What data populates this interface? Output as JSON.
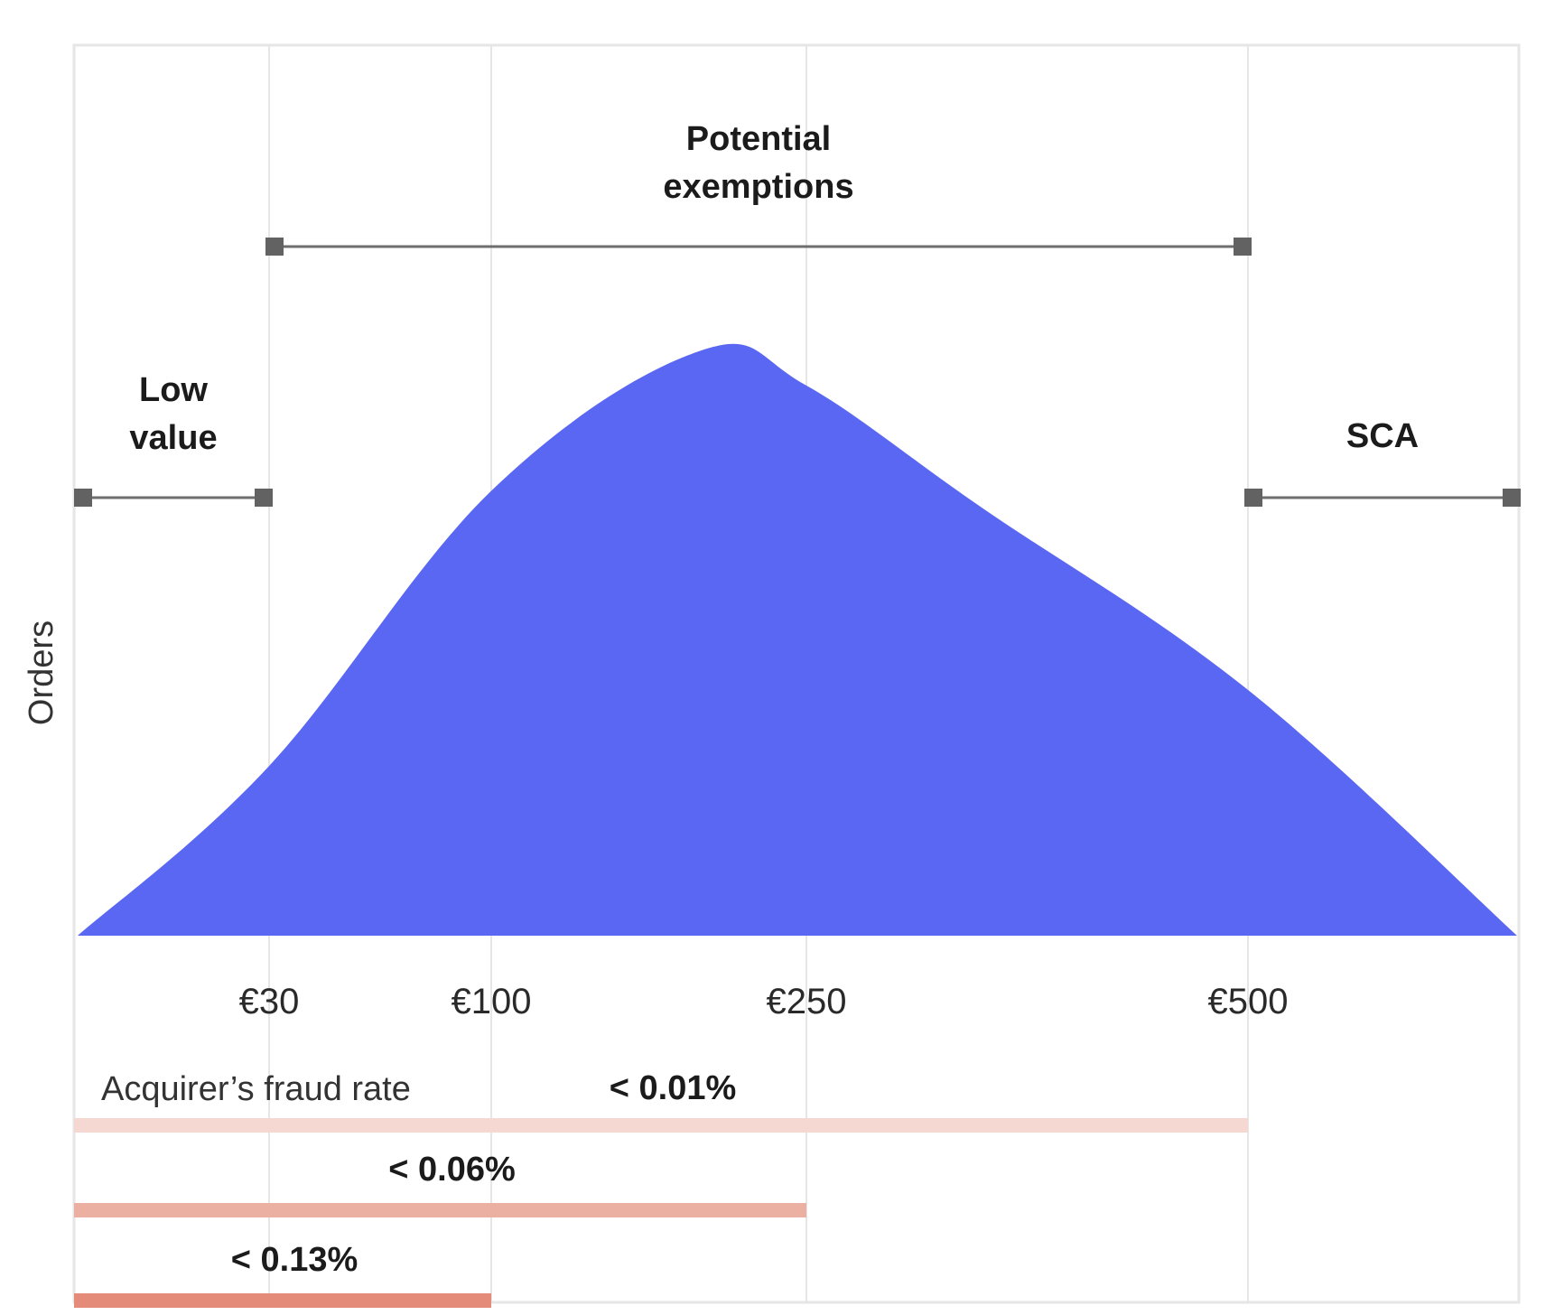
{
  "chart_data": {
    "type": "area",
    "ylabel": "Orders",
    "x_ticks": [
      {
        "value": 30,
        "label": "€30"
      },
      {
        "value": 100,
        "label": "€100"
      },
      {
        "value": 250,
        "label": "€250"
      },
      {
        "value": 500,
        "label": "€500"
      }
    ],
    "distribution": {
      "description_values": "relative share of orders by order value",
      "x": [
        0,
        30,
        100,
        200,
        250,
        350,
        500,
        600
      ],
      "y": [
        0,
        0.29,
        0.76,
        1.0,
        0.94,
        0.73,
        0.42,
        0
      ]
    },
    "color": "#5a67f3",
    "ranges": [
      {
        "name": "low-value",
        "label_lines": [
          "Low",
          "value"
        ],
        "from": 0,
        "to": 30
      },
      {
        "name": "potential-exemptions",
        "label_lines": [
          "Potential",
          "exemptions"
        ],
        "from": 30,
        "to": 500
      },
      {
        "name": "sca",
        "label_lines": [
          "SCA"
        ],
        "from": 500,
        "to": 600
      }
    ],
    "fraud_rate": {
      "title": "Acquirer’s fraud rate",
      "bands": [
        {
          "label": "< 0.01%",
          "from": 0,
          "to": 500,
          "color": "#f6d8d2"
        },
        {
          "label": "< 0.06%",
          "from": 0,
          "to": 250,
          "color": "#ebb0a2"
        },
        {
          "label": "< 0.13%",
          "from": 0,
          "to": 100,
          "color": "#e48c79"
        }
      ]
    },
    "grid": true,
    "legend": "none"
  }
}
